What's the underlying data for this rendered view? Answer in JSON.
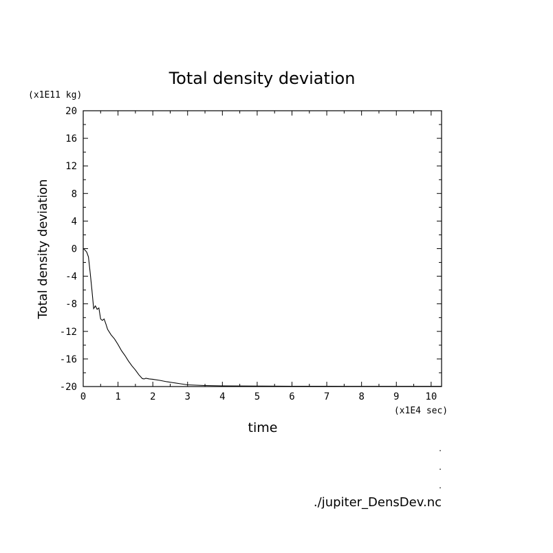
{
  "chart_data": {
    "type": "line",
    "title": "Total density deviation",
    "xlabel": "time",
    "ylabel": "Total density deviation",
    "x_units_label": "(x1E4 sec)",
    "y_units_label": "(x1E11 kg)",
    "xlim": [
      0,
      10.3
    ],
    "ylim": [
      -20,
      20
    ],
    "x_ticks": [
      0,
      1,
      2,
      3,
      4,
      5,
      6,
      7,
      8,
      9,
      10
    ],
    "y_ticks": [
      20,
      16,
      12,
      8,
      4,
      0,
      -4,
      -8,
      -12,
      -16,
      -20
    ],
    "grid": false,
    "legend": "none",
    "line_color": "#000000",
    "series": [
      {
        "x": [
          0,
          0.05,
          0.1,
          0.15,
          0.2,
          0.25,
          0.3,
          0.35,
          0.4,
          0.45,
          0.5,
          0.55,
          0.6,
          0.65,
          0.7,
          0.8,
          0.9,
          1.0,
          1.1,
          1.2,
          1.3,
          1.4,
          1.5,
          1.6,
          1.7,
          1.75,
          1.8,
          1.9,
          2.0,
          2.2,
          2.4,
          2.6,
          2.8,
          3.0,
          3.5,
          4.0,
          5.0,
          6.0,
          7.0,
          8.0,
          9.0,
          10.3
        ],
        "y": [
          0,
          -0.2,
          -0.5,
          -1.2,
          -3.5,
          -6,
          -8.7,
          -8.3,
          -8.8,
          -8.6,
          -10.2,
          -10.4,
          -10.2,
          -10.9,
          -11.7,
          -12.5,
          -13.1,
          -13.9,
          -14.8,
          -15.5,
          -16.3,
          -17.0,
          -17.6,
          -18.3,
          -18.85,
          -18.9,
          -18.8,
          -18.9,
          -18.95,
          -19.1,
          -19.3,
          -19.45,
          -19.6,
          -19.75,
          -19.85,
          -19.9,
          -19.93,
          -19.95,
          -19.96,
          -19.97,
          -19.97,
          -19.97
        ]
      }
    ]
  },
  "footer": {
    "marks": [
      ".",
      ".",
      "."
    ],
    "source": "./jupiter_DensDev.nc"
  }
}
